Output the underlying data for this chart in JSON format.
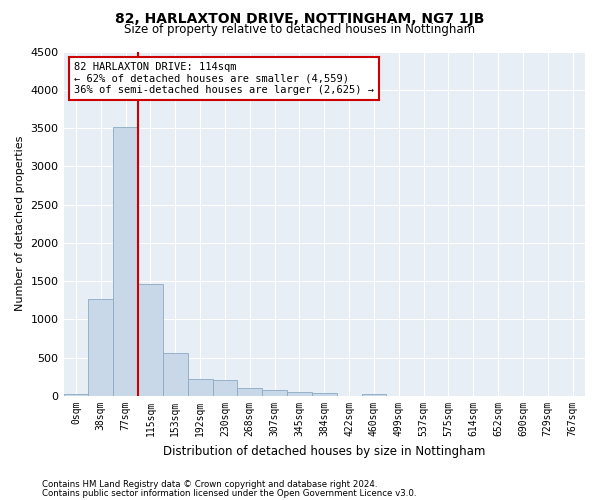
{
  "title": "82, HARLAXTON DRIVE, NOTTINGHAM, NG7 1JB",
  "subtitle": "Size of property relative to detached houses in Nottingham",
  "xlabel": "Distribution of detached houses by size in Nottingham",
  "ylabel": "Number of detached properties",
  "footer_line1": "Contains HM Land Registry data © Crown copyright and database right 2024.",
  "footer_line2": "Contains public sector information licensed under the Open Government Licence v3.0.",
  "bin_labels": [
    "0sqm",
    "38sqm",
    "77sqm",
    "115sqm",
    "153sqm",
    "192sqm",
    "230sqm",
    "268sqm",
    "307sqm",
    "345sqm",
    "384sqm",
    "422sqm",
    "460sqm",
    "499sqm",
    "537sqm",
    "575sqm",
    "614sqm",
    "652sqm",
    "690sqm",
    "729sqm",
    "767sqm"
  ],
  "bar_heights": [
    30,
    1270,
    3520,
    1460,
    560,
    220,
    215,
    110,
    75,
    50,
    40,
    0,
    30,
    0,
    0,
    0,
    0,
    0,
    0,
    0,
    0
  ],
  "bar_color": "#c8d8e8",
  "bar_edge_color": "#8aaac4",
  "vline_color": "#cc0000",
  "vline_x": 2.5,
  "ylim": [
    0,
    4500
  ],
  "yticks": [
    0,
    500,
    1000,
    1500,
    2000,
    2500,
    3000,
    3500,
    4000,
    4500
  ],
  "annotation_text": "82 HARLAXTON DRIVE: 114sqm\n← 62% of detached houses are smaller (4,559)\n36% of semi-detached houses are larger (2,625) →",
  "annotation_box_facecolor": "#ffffff",
  "annotation_box_edgecolor": "#cc0000",
  "background_color": "#ffffff",
  "plot_bg_color": "#e8eef5"
}
